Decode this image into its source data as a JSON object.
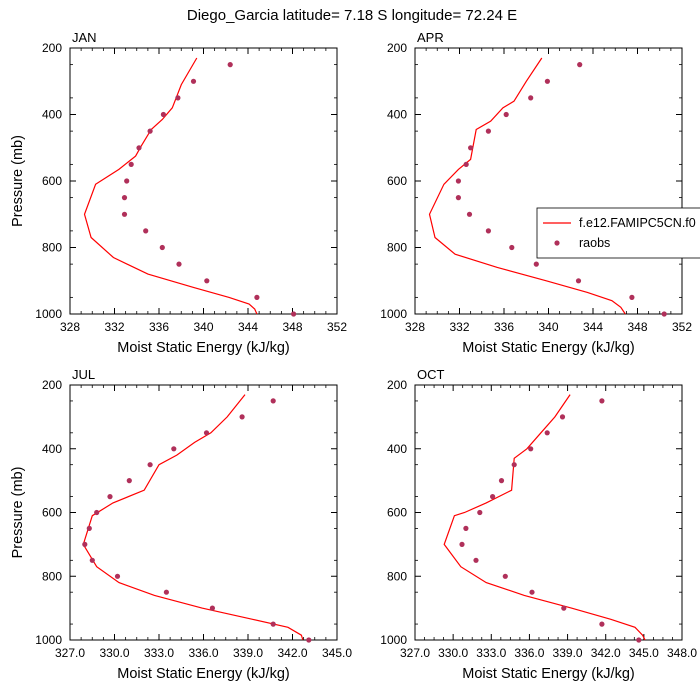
{
  "title": "Diego_Garcia  latitude= 7.18 S longitude= 72.24 E",
  "colors": {
    "model": "#ff0000",
    "obs": "#b0305a"
  },
  "legend": {
    "model_label": "f.e12.FAMIPC5CN.f0",
    "obs_label": "raobs",
    "anchor_panel": 1
  },
  "chart_data": [
    {
      "type": "line",
      "panel_label": "JAN",
      "xlabel": "Moist Static Energy (kJ/kg)",
      "ylabel": "Pressure (mb)",
      "xlim": [
        328,
        352
      ],
      "ylim": [
        1000,
        200
      ],
      "y_reversed": true,
      "xticks": [
        328,
        332,
        336,
        340,
        344,
        348,
        352
      ],
      "xtick_labels": [
        "328",
        "332",
        "336",
        "340",
        "344",
        "348",
        "352"
      ],
      "yticks": [
        200,
        400,
        600,
        800,
        1000
      ],
      "ytick_labels": [
        "200",
        "400",
        "600",
        "800",
        "1000"
      ],
      "series": [
        {
          "name": "f.e12.FAMIPC5CN.f0",
          "kind": "line",
          "x": [
            339.4,
            338.0,
            337.2,
            336.3,
            335.3,
            334.4,
            333.9,
            332.4,
            330.3,
            329.3,
            329.9,
            331.9,
            335.0,
            339.1,
            342.3,
            344.1,
            344.6,
            344.8
          ],
          "y": [
            230,
            310,
            380,
            415,
            445,
            495,
            525,
            565,
            610,
            700,
            770,
            830,
            880,
            920,
            950,
            970,
            985,
            1000
          ]
        },
        {
          "name": "raobs",
          "kind": "scatter",
          "x": [
            342.4,
            339.1,
            337.7,
            336.4,
            335.2,
            334.2,
            333.5,
            333.1,
            332.9,
            332.9,
            334.8,
            336.3,
            337.8,
            340.3,
            344.8,
            348.1
          ],
          "y": [
            250,
            300,
            350,
            400,
            450,
            500,
            550,
            600,
            650,
            700,
            750,
            800,
            850,
            900,
            950,
            1000
          ]
        }
      ]
    },
    {
      "type": "line",
      "panel_label": "APR",
      "xlabel": "Moist Static Energy (kJ/kg)",
      "ylabel": "",
      "xlim": [
        328,
        352
      ],
      "ylim": [
        1000,
        200
      ],
      "y_reversed": true,
      "xticks": [
        328,
        332,
        336,
        340,
        344,
        348,
        352
      ],
      "xtick_labels": [
        "328",
        "332",
        "336",
        "340",
        "344",
        "348",
        "352"
      ],
      "yticks": [
        200,
        400,
        600,
        800,
        1000
      ],
      "ytick_labels": [
        "200",
        "400",
        "600",
        "800",
        "1000"
      ],
      "series": [
        {
          "name": "f.e12.FAMIPC5CN.f0",
          "kind": "line",
          "x": [
            339.4,
            338.0,
            336.9,
            335.9,
            334.8,
            333.5,
            333.0,
            331.9,
            330.6,
            329.3,
            329.8,
            331.6,
            335.4,
            339.8,
            343.5,
            345.7,
            346.5,
            346.9
          ],
          "y": [
            230,
            300,
            360,
            380,
            420,
            445,
            535,
            565,
            610,
            700,
            770,
            820,
            860,
            900,
            935,
            960,
            980,
            1000
          ]
        },
        {
          "name": "raobs",
          "kind": "scatter",
          "x": [
            342.8,
            339.9,
            338.4,
            336.2,
            334.6,
            333.0,
            332.6,
            331.9,
            331.9,
            332.9,
            334.6,
            336.7,
            338.9,
            342.7,
            347.5,
            350.4
          ],
          "y": [
            250,
            300,
            350,
            400,
            450,
            500,
            550,
            600,
            650,
            700,
            750,
            800,
            850,
            900,
            950,
            1000
          ]
        }
      ]
    },
    {
      "type": "line",
      "panel_label": "JUL",
      "xlabel": "Moist Static Energy (kJ/kg)",
      "ylabel": "Pressure (mb)",
      "xlim": [
        327.0,
        345.0
      ],
      "ylim": [
        1000,
        200
      ],
      "y_reversed": true,
      "xticks": [
        327.0,
        330.0,
        333.0,
        336.0,
        339.0,
        342.0,
        345.0
      ],
      "xtick_labels": [
        "327.0",
        "330.0",
        "333.0",
        "336.0",
        "339.0",
        "342.0",
        "345.0"
      ],
      "yticks": [
        200,
        400,
        600,
        800,
        1000
      ],
      "ytick_labels": [
        "200",
        "400",
        "600",
        "800",
        "1000"
      ],
      "series": [
        {
          "name": "f.e12.FAMIPC5CN.f0",
          "kind": "line",
          "x": [
            338.8,
            337.6,
            336.5,
            335.4,
            334.2,
            333.0,
            332.0,
            329.9,
            328.5,
            327.9,
            328.8,
            330.3,
            332.7,
            335.9,
            339.3,
            341.7,
            342.6,
            342.7
          ],
          "y": [
            230,
            300,
            350,
            380,
            420,
            450,
            530,
            570,
            610,
            700,
            770,
            820,
            860,
            900,
            935,
            960,
            985,
            1000
          ]
        },
        {
          "name": "raobs",
          "kind": "scatter",
          "x": [
            340.7,
            338.6,
            336.2,
            334.0,
            332.4,
            331.0,
            329.7,
            328.8,
            328.3,
            328.0,
            328.5,
            330.2,
            333.5,
            336.6,
            340.7,
            343.1
          ],
          "y": [
            250,
            300,
            350,
            400,
            450,
            500,
            550,
            600,
            650,
            700,
            750,
            800,
            850,
            900,
            950,
            1000
          ]
        }
      ]
    },
    {
      "type": "line",
      "panel_label": "OCT",
      "xlabel": "Moist Static Energy (kJ/kg)",
      "ylabel": "",
      "xlim": [
        327.0,
        348.0
      ],
      "ylim": [
        1000,
        200
      ],
      "y_reversed": true,
      "xticks": [
        327.0,
        330.0,
        333.0,
        336.0,
        339.0,
        342.0,
        345.0,
        348.0
      ],
      "xtick_labels": [
        "327.0",
        "330.0",
        "333.0",
        "336.0",
        "339.0",
        "342.0",
        "345.0",
        "348.0"
      ],
      "yticks": [
        200,
        400,
        600,
        800,
        1000
      ],
      "ytick_labels": [
        "200",
        "400",
        "600",
        "800",
        "1000"
      ],
      "series": [
        {
          "name": "f.e12.FAMIPC5CN.f0",
          "kind": "line",
          "x": [
            339.2,
            338.0,
            336.9,
            335.8,
            334.8,
            334.6,
            332.6,
            330.9,
            330.1,
            329.3,
            330.6,
            332.6,
            335.6,
            339.3,
            342.4,
            344.3,
            344.9,
            345.1
          ],
          "y": [
            230,
            300,
            350,
            400,
            430,
            530,
            570,
            600,
            610,
            700,
            770,
            820,
            860,
            900,
            935,
            960,
            985,
            1000
          ]
        },
        {
          "name": "raobs",
          "kind": "scatter",
          "x": [
            341.7,
            338.6,
            337.4,
            336.1,
            334.8,
            333.8,
            333.1,
            332.1,
            331.0,
            330.7,
            331.8,
            334.1,
            336.2,
            338.7,
            341.7,
            344.6
          ],
          "y": [
            250,
            300,
            350,
            400,
            450,
            500,
            550,
            600,
            650,
            700,
            750,
            800,
            850,
            900,
            950,
            1000
          ]
        }
      ]
    }
  ]
}
